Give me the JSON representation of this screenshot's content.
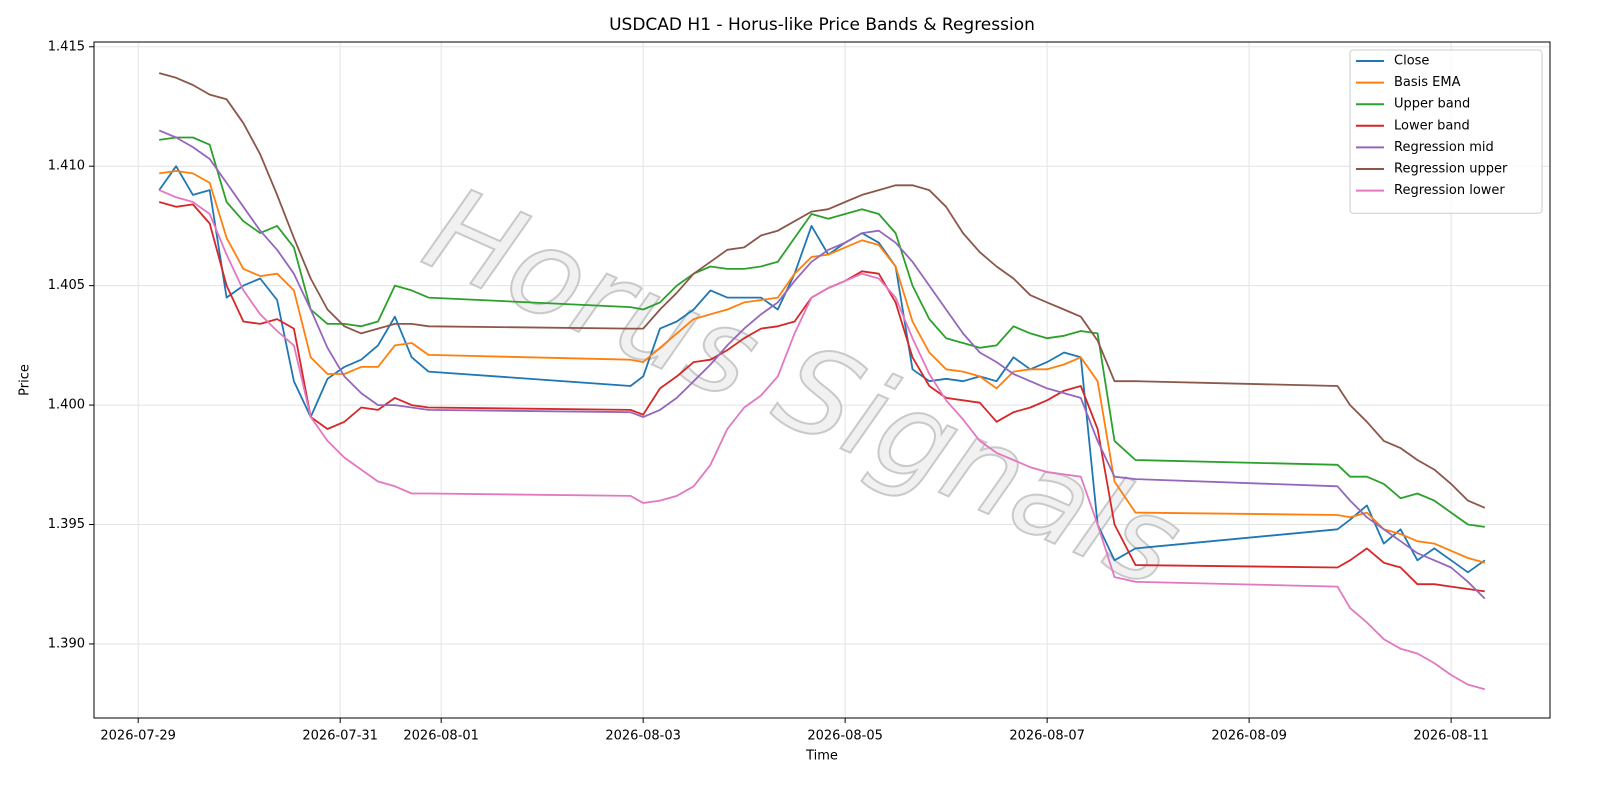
{
  "chart_data": {
    "type": "line",
    "title": "USDCAD H1 - Horus-like Price Bands & Regression",
    "x_label": "Time",
    "y_label": "Price",
    "watermark": "Horus Signals",
    "grid": true,
    "legend": "upper right",
    "xlim": [
      "2026-07-28 13:30",
      "2026-08-11 23:30"
    ],
    "xticks": [
      "2026-07-29",
      "2026-07-31",
      "2026-08-01",
      "2026-08-03",
      "2026-08-05",
      "2026-08-07",
      "2026-08-09",
      "2026-08-11"
    ],
    "ylim": [
      1.3869,
      1.4152
    ],
    "yticks": [
      {
        "value": 1.39,
        "label": "1.390"
      },
      {
        "value": 1.395,
        "label": "1.395"
      },
      {
        "value": 1.4,
        "label": "1.400"
      },
      {
        "value": 1.405,
        "label": "1.405"
      },
      {
        "value": 1.41,
        "label": "1.410"
      },
      {
        "value": 1.415,
        "label": "1.415"
      }
    ],
    "x": [
      "2026-07-29 05:00",
      "2026-07-29 09:00",
      "2026-07-29 13:00",
      "2026-07-29 17:00",
      "2026-07-29 21:00",
      "2026-07-30 01:00",
      "2026-07-30 05:00",
      "2026-07-30 09:00",
      "2026-07-30 13:00",
      "2026-07-30 17:00",
      "2026-07-30 21:00",
      "2026-07-31 01:00",
      "2026-07-31 05:00",
      "2026-07-31 09:00",
      "2026-07-31 13:00",
      "2026-07-31 17:00",
      "2026-07-31 21:00",
      "2026-08-02 21:00",
      "2026-08-03 00:00",
      "2026-08-03 04:00",
      "2026-08-03 08:00",
      "2026-08-03 12:00",
      "2026-08-03 16:00",
      "2026-08-03 20:00",
      "2026-08-04 00:00",
      "2026-08-04 04:00",
      "2026-08-04 08:00",
      "2026-08-04 12:00",
      "2026-08-04 16:00",
      "2026-08-04 20:00",
      "2026-08-05 00:00",
      "2026-08-05 04:00",
      "2026-08-05 08:00",
      "2026-08-05 12:00",
      "2026-08-05 16:00",
      "2026-08-05 20:00",
      "2026-08-06 00:00",
      "2026-08-06 04:00",
      "2026-08-06 08:00",
      "2026-08-06 12:00",
      "2026-08-06 16:00",
      "2026-08-06 20:00",
      "2026-08-07 00:00",
      "2026-08-07 04:00",
      "2026-08-07 08:00",
      "2026-08-07 12:00",
      "2026-08-07 16:00",
      "2026-08-07 21:00",
      "2026-08-09 21:00",
      "2026-08-10 00:00",
      "2026-08-10 04:00",
      "2026-08-10 08:00",
      "2026-08-10 12:00",
      "2026-08-10 16:00",
      "2026-08-10 20:00",
      "2026-08-11 00:00",
      "2026-08-11 04:00",
      "2026-08-11 08:00"
    ],
    "series": [
      {
        "name": "Close",
        "color": "#1f77b4",
        "values": [
          1.409,
          1.41,
          1.4088,
          1.409,
          1.4045,
          1.405,
          1.4053,
          1.4044,
          1.401,
          1.3995,
          1.4011,
          1.4016,
          1.4019,
          1.4025,
          1.4037,
          1.402,
          1.4014,
          1.4008,
          1.4012,
          1.4032,
          1.4035,
          1.404,
          1.4048,
          1.4045,
          1.4045,
          1.4045,
          1.404,
          1.4055,
          1.4075,
          1.4063,
          1.4068,
          1.4072,
          1.4068,
          1.4058,
          1.4015,
          1.401,
          1.4011,
          1.401,
          1.4012,
          1.401,
          1.402,
          1.4015,
          1.4018,
          1.4022,
          1.402,
          1.395,
          1.3935,
          1.394,
          1.3948,
          1.3952,
          1.3958,
          1.3942,
          1.3948,
          1.3935,
          1.394,
          1.3935,
          1.393,
          1.3935
        ]
      },
      {
        "name": "Basis EMA",
        "color": "#ff7f0e",
        "values": [
          1.4097,
          1.4098,
          1.4097,
          1.4093,
          1.407,
          1.4057,
          1.4054,
          1.4055,
          1.4048,
          1.402,
          1.4013,
          1.4013,
          1.4016,
          1.4016,
          1.4025,
          1.4026,
          1.4021,
          1.4019,
          1.4018,
          1.4024,
          1.403,
          1.4036,
          1.4038,
          1.404,
          1.4043,
          1.4044,
          1.4045,
          1.4055,
          1.4062,
          1.4063,
          1.4066,
          1.4069,
          1.4067,
          1.4058,
          1.4035,
          1.4022,
          1.4015,
          1.4014,
          1.4012,
          1.4007,
          1.4014,
          1.4015,
          1.4015,
          1.4017,
          1.402,
          1.401,
          1.3968,
          1.3955,
          1.3954,
          1.3953,
          1.3955,
          1.3948,
          1.3946,
          1.3943,
          1.3942,
          1.3939,
          1.3936,
          1.3934
        ]
      },
      {
        "name": "Upper band",
        "color": "#2ca02c",
        "values": [
          1.4111,
          1.4112,
          1.4112,
          1.4109,
          1.4085,
          1.4077,
          1.4072,
          1.4075,
          1.4066,
          1.404,
          1.4034,
          1.4034,
          1.4033,
          1.4035,
          1.405,
          1.4048,
          1.4045,
          1.4041,
          1.404,
          1.4043,
          1.405,
          1.4055,
          1.4058,
          1.4057,
          1.4057,
          1.4058,
          1.406,
          1.407,
          1.408,
          1.4078,
          1.408,
          1.4082,
          1.408,
          1.4072,
          1.405,
          1.4036,
          1.4028,
          1.4026,
          1.4024,
          1.4025,
          1.4033,
          1.403,
          1.4028,
          1.4029,
          1.4031,
          1.403,
          1.3985,
          1.3977,
          1.3975,
          1.397,
          1.397,
          1.3967,
          1.3961,
          1.3963,
          1.396,
          1.3955,
          1.395,
          1.3949
        ]
      },
      {
        "name": "Lower band",
        "color": "#d62728",
        "values": [
          1.4085,
          1.4083,
          1.4084,
          1.4076,
          1.405,
          1.4035,
          1.4034,
          1.4036,
          1.4032,
          1.3995,
          1.399,
          1.3993,
          1.3999,
          1.3998,
          1.4003,
          1.4,
          1.3999,
          1.3998,
          1.3996,
          1.4007,
          1.4012,
          1.4018,
          1.4019,
          1.4023,
          1.4028,
          1.4032,
          1.4033,
          1.4035,
          1.4045,
          1.4049,
          1.4052,
          1.4056,
          1.4055,
          1.4043,
          1.402,
          1.4008,
          1.4003,
          1.4002,
          1.4001,
          1.3993,
          1.3997,
          1.3999,
          1.4002,
          1.4006,
          1.4008,
          1.399,
          1.395,
          1.3933,
          1.3932,
          1.3935,
          1.394,
          1.3934,
          1.3932,
          1.3925,
          1.3925,
          1.3924,
          1.3923,
          1.3922
        ]
      },
      {
        "name": "Regression mid",
        "color": "#9467bd",
        "values": [
          1.4115,
          1.4112,
          1.4108,
          1.4103,
          1.4093,
          1.4083,
          1.4073,
          1.4065,
          1.4055,
          1.404,
          1.4024,
          1.4012,
          1.4005,
          1.4,
          1.4,
          1.3999,
          1.3998,
          1.3997,
          1.3995,
          1.3998,
          1.4003,
          1.401,
          1.4017,
          1.4025,
          1.4032,
          1.4038,
          1.4043,
          1.4052,
          1.406,
          1.4065,
          1.4068,
          1.4072,
          1.4073,
          1.4068,
          1.406,
          1.405,
          1.404,
          1.403,
          1.4022,
          1.4018,
          1.4013,
          1.401,
          1.4007,
          1.4005,
          1.4003,
          1.3985,
          1.397,
          1.3969,
          1.3966,
          1.396,
          1.3953,
          1.3948,
          1.3943,
          1.3938,
          1.3935,
          1.3932,
          1.3926,
          1.3919
        ]
      },
      {
        "name": "Regression upper",
        "color": "#8c564b",
        "values": [
          1.4139,
          1.4137,
          1.4134,
          1.413,
          1.4128,
          1.4118,
          1.4105,
          1.4088,
          1.407,
          1.4053,
          1.404,
          1.4033,
          1.403,
          1.4032,
          1.4034,
          1.4034,
          1.4033,
          1.4032,
          1.4032,
          1.404,
          1.4047,
          1.4055,
          1.406,
          1.4065,
          1.4066,
          1.4071,
          1.4073,
          1.4077,
          1.4081,
          1.4082,
          1.4085,
          1.4088,
          1.409,
          1.4092,
          1.4092,
          1.409,
          1.4083,
          1.4072,
          1.4064,
          1.4058,
          1.4053,
          1.4046,
          1.4043,
          1.404,
          1.4037,
          1.4027,
          1.401,
          1.401,
          1.4008,
          1.4,
          1.3993,
          1.3985,
          1.3982,
          1.3977,
          1.3973,
          1.3967,
          1.396,
          1.3957
        ]
      },
      {
        "name": "Regression lower",
        "color": "#e377c2",
        "values": [
          1.409,
          1.4087,
          1.4085,
          1.408,
          1.4063,
          1.4048,
          1.4038,
          1.4031,
          1.4025,
          1.3995,
          1.3985,
          1.3978,
          1.3973,
          1.3968,
          1.3966,
          1.3963,
          1.3963,
          1.3962,
          1.3959,
          1.396,
          1.3962,
          1.3966,
          1.3975,
          1.399,
          1.3999,
          1.4004,
          1.4012,
          1.403,
          1.4045,
          1.4049,
          1.4052,
          1.4055,
          1.4053,
          1.4045,
          1.4028,
          1.4013,
          1.4002,
          1.3994,
          1.3985,
          1.398,
          1.3977,
          1.3974,
          1.3972,
          1.3971,
          1.397,
          1.395,
          1.3928,
          1.3926,
          1.3924,
          1.3915,
          1.3909,
          1.3902,
          1.3898,
          1.3896,
          1.3892,
          1.3887,
          1.3883,
          1.3881
        ]
      }
    ]
  }
}
